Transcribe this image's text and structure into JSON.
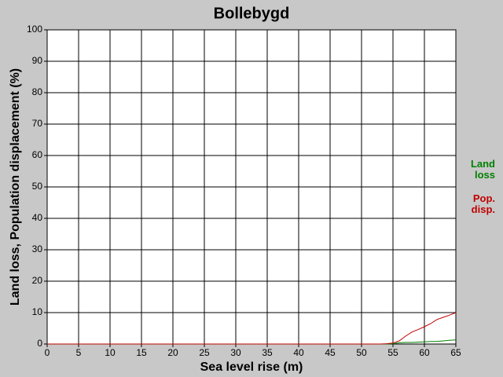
{
  "chart_data": {
    "type": "line",
    "title": "Bollebygd",
    "x_label": "Sea level rise (m)",
    "y_label": "Land loss, Population displacement (%)",
    "x": [
      0,
      52,
      53,
      54,
      55,
      56,
      57,
      58,
      59,
      60,
      61,
      62,
      63,
      64,
      65
    ],
    "series": [
      {
        "name": "Land loss",
        "color": "#008000",
        "values": [
          0,
          0,
          0,
          0,
          0.1,
          0.4,
          0.5,
          0.5,
          0.6,
          0.7,
          0.8,
          0.8,
          1.0,
          1.2,
          1.3
        ]
      },
      {
        "name": "Pop. disp.",
        "color": "#c00000",
        "values": [
          0,
          0,
          0,
          0.1,
          0.3,
          1,
          2.5,
          3.8,
          4.6,
          5.5,
          6.5,
          7.8,
          8.5,
          9.2,
          10
        ]
      }
    ],
    "xlim": [
      0,
      65
    ],
    "xticks": [
      0,
      5,
      10,
      15,
      20,
      25,
      30,
      35,
      40,
      45,
      50,
      55,
      60,
      65
    ],
    "ylim": [
      0,
      100
    ],
    "yticks": [
      0,
      10,
      20,
      30,
      40,
      50,
      60,
      70,
      80,
      90,
      100
    ],
    "grid": true
  }
}
